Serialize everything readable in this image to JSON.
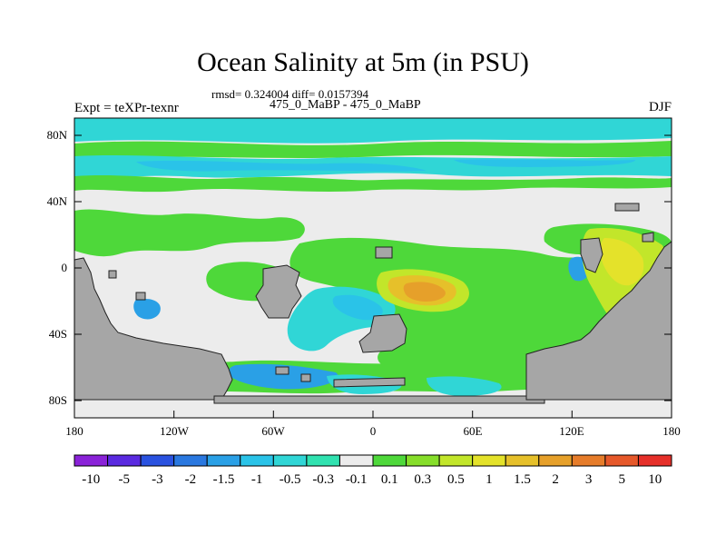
{
  "title": "Ocean Salinity at 5m (in PSU)",
  "stats": "rmsd= 0.324004 diff= 0.0157394",
  "subtitle": "475_0_MaBP - 475_0_MaBP",
  "left_string": "Expt = teXPr-texnr",
  "right_string": "DJF",
  "y_ticks": [
    "80N",
    "40N",
    "0",
    "40S",
    "80S"
  ],
  "x_ticks": [
    "180",
    "120W",
    "60W",
    "0",
    "60E",
    "120E",
    "180"
  ],
  "colorbar": {
    "colors": [
      "#8a22d8",
      "#5a2ae0",
      "#2a52e0",
      "#2a78e0",
      "#2aa0e6",
      "#2ac3e8",
      "#30d6d6",
      "#30e2b0",
      "#ececec",
      "#4ed83a",
      "#86de2a",
      "#c2e62a",
      "#e4e22a",
      "#e6c02a",
      "#e6a02a",
      "#e67c2a",
      "#e6582a",
      "#e6302a"
    ],
    "labels": [
      "-10",
      "-5",
      "-3",
      "-2",
      "-1.5",
      "-1",
      "-0.5",
      "-0.3",
      "-0.1",
      "0.1",
      "0.3",
      "0.5",
      "1",
      "1.5",
      "2",
      "3",
      "5",
      "10"
    ]
  },
  "palette": {
    "land": "#a6a6a6",
    "neutral": "#ececec",
    "green": "#4ed83a",
    "teal": "#30d6d6",
    "cyan": "#2ac3e8",
    "blue": "#2aa0e6",
    "yellow": "#c2e62a",
    "orange": "#e6a02a"
  }
}
